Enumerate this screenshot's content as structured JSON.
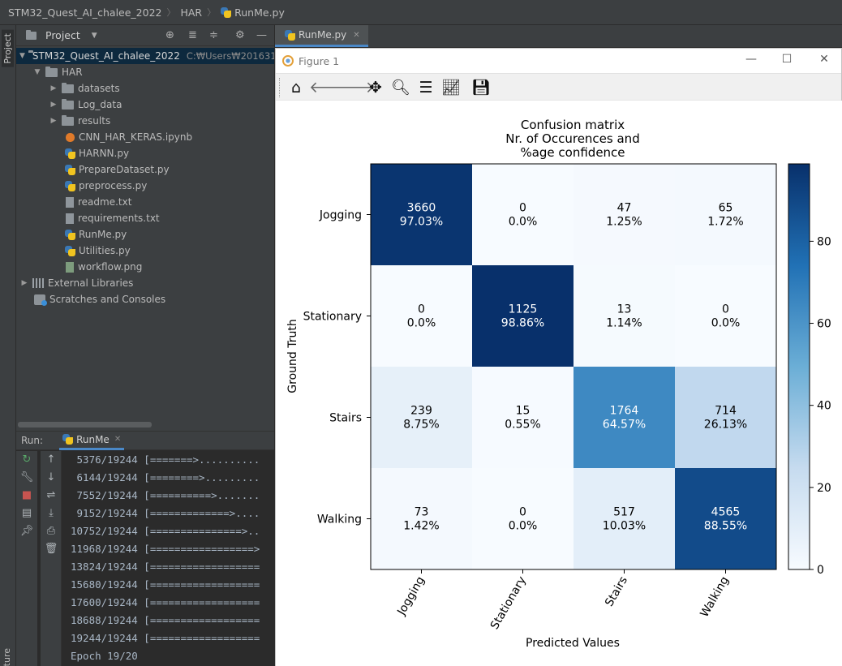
{
  "breadcrumb": {
    "project": "STM32_Quest_AI_chalee_2022",
    "folder": "HAR",
    "file": "RunMe.py"
  },
  "leftstrip": {
    "project_label": "Project",
    "structure_label": "ture"
  },
  "project_panel": {
    "title": "Project",
    "root": {
      "name": "STM32_Quest_AI_chalee_2022",
      "path": "C:₩Users₩201631"
    },
    "folder": "HAR",
    "subfolders": [
      "datasets",
      "Log_data",
      "results"
    ],
    "files": [
      {
        "name": "CNN_HAR_KERAS.ipynb",
        "kind": "nb"
      },
      {
        "name": "HARNN.py",
        "kind": "py"
      },
      {
        "name": "PrepareDataset.py",
        "kind": "py"
      },
      {
        "name": "preprocess.py",
        "kind": "py"
      },
      {
        "name": "readme.txt",
        "kind": "txt"
      },
      {
        "name": "requirements.txt",
        "kind": "txt"
      },
      {
        "name": "RunMe.py",
        "kind": "py"
      },
      {
        "name": "Utilities.py",
        "kind": "py"
      },
      {
        "name": "workflow.png",
        "kind": "png"
      }
    ],
    "external_libraries": "External Libraries",
    "scratches": "Scratches and Consoles"
  },
  "run_panel": {
    "label": "Run:",
    "tab": "RunMe",
    "console_lines": [
      " 5376/19244 [=======>..........",
      " 6144/19244 [========>.........",
      " 7552/19244 [==========>.......",
      " 9152/19244 [=============>....",
      "10752/19244 [===============>..",
      "11968/19244 [=================>",
      "13824/19244 [==================",
      "15680/19244 [==================",
      "17600/19244 [==================",
      "18688/19244 [==================",
      "19244/19244 [==================",
      "Epoch 19/20"
    ]
  },
  "editor": {
    "tab": "RunMe.py"
  },
  "figure_window": {
    "title": "Figure 1",
    "toolbar": [
      "home-icon",
      "back-icon",
      "forward-icon",
      "pan-icon",
      "zoom-icon",
      "subplots-icon",
      "edit-axes-icon",
      "save-icon"
    ]
  },
  "chart_data": {
    "type": "heatmap",
    "title": [
      "Confusion matrix",
      "Nr. of Occurences and",
      "%age confidence"
    ],
    "xlabel": "Predicted Values",
    "ylabel": "Ground Truth",
    "x_categories": [
      "Jogging",
      "Stationary",
      "Stairs",
      "Walking"
    ],
    "y_categories": [
      "Jogging",
      "Stationary",
      "Stairs",
      "Walking"
    ],
    "counts": [
      [
        3660,
        0,
        47,
        65
      ],
      [
        0,
        1125,
        13,
        0
      ],
      [
        239,
        15,
        1764,
        714
      ],
      [
        73,
        0,
        517,
        4565
      ]
    ],
    "percent": [
      [
        "97.03%",
        "0.0%",
        "1.25%",
        "1.72%"
      ],
      [
        "0.0%",
        "98.86%",
        "1.14%",
        "0.0%"
      ],
      [
        "8.75%",
        "0.55%",
        "64.57%",
        "26.13%"
      ],
      [
        "1.42%",
        "0.0%",
        "10.03%",
        "88.55%"
      ]
    ],
    "percent_values": [
      [
        97.03,
        0.0,
        1.25,
        1.72
      ],
      [
        0.0,
        98.86,
        1.14,
        0.0
      ],
      [
        8.75,
        0.55,
        64.57,
        26.13
      ],
      [
        1.42,
        0.0,
        10.03,
        88.55
      ]
    ],
    "colorbar": {
      "colormap": "Blues",
      "range": [
        0,
        98.86
      ],
      "ticks": [
        0,
        20,
        40,
        60,
        80
      ]
    }
  }
}
